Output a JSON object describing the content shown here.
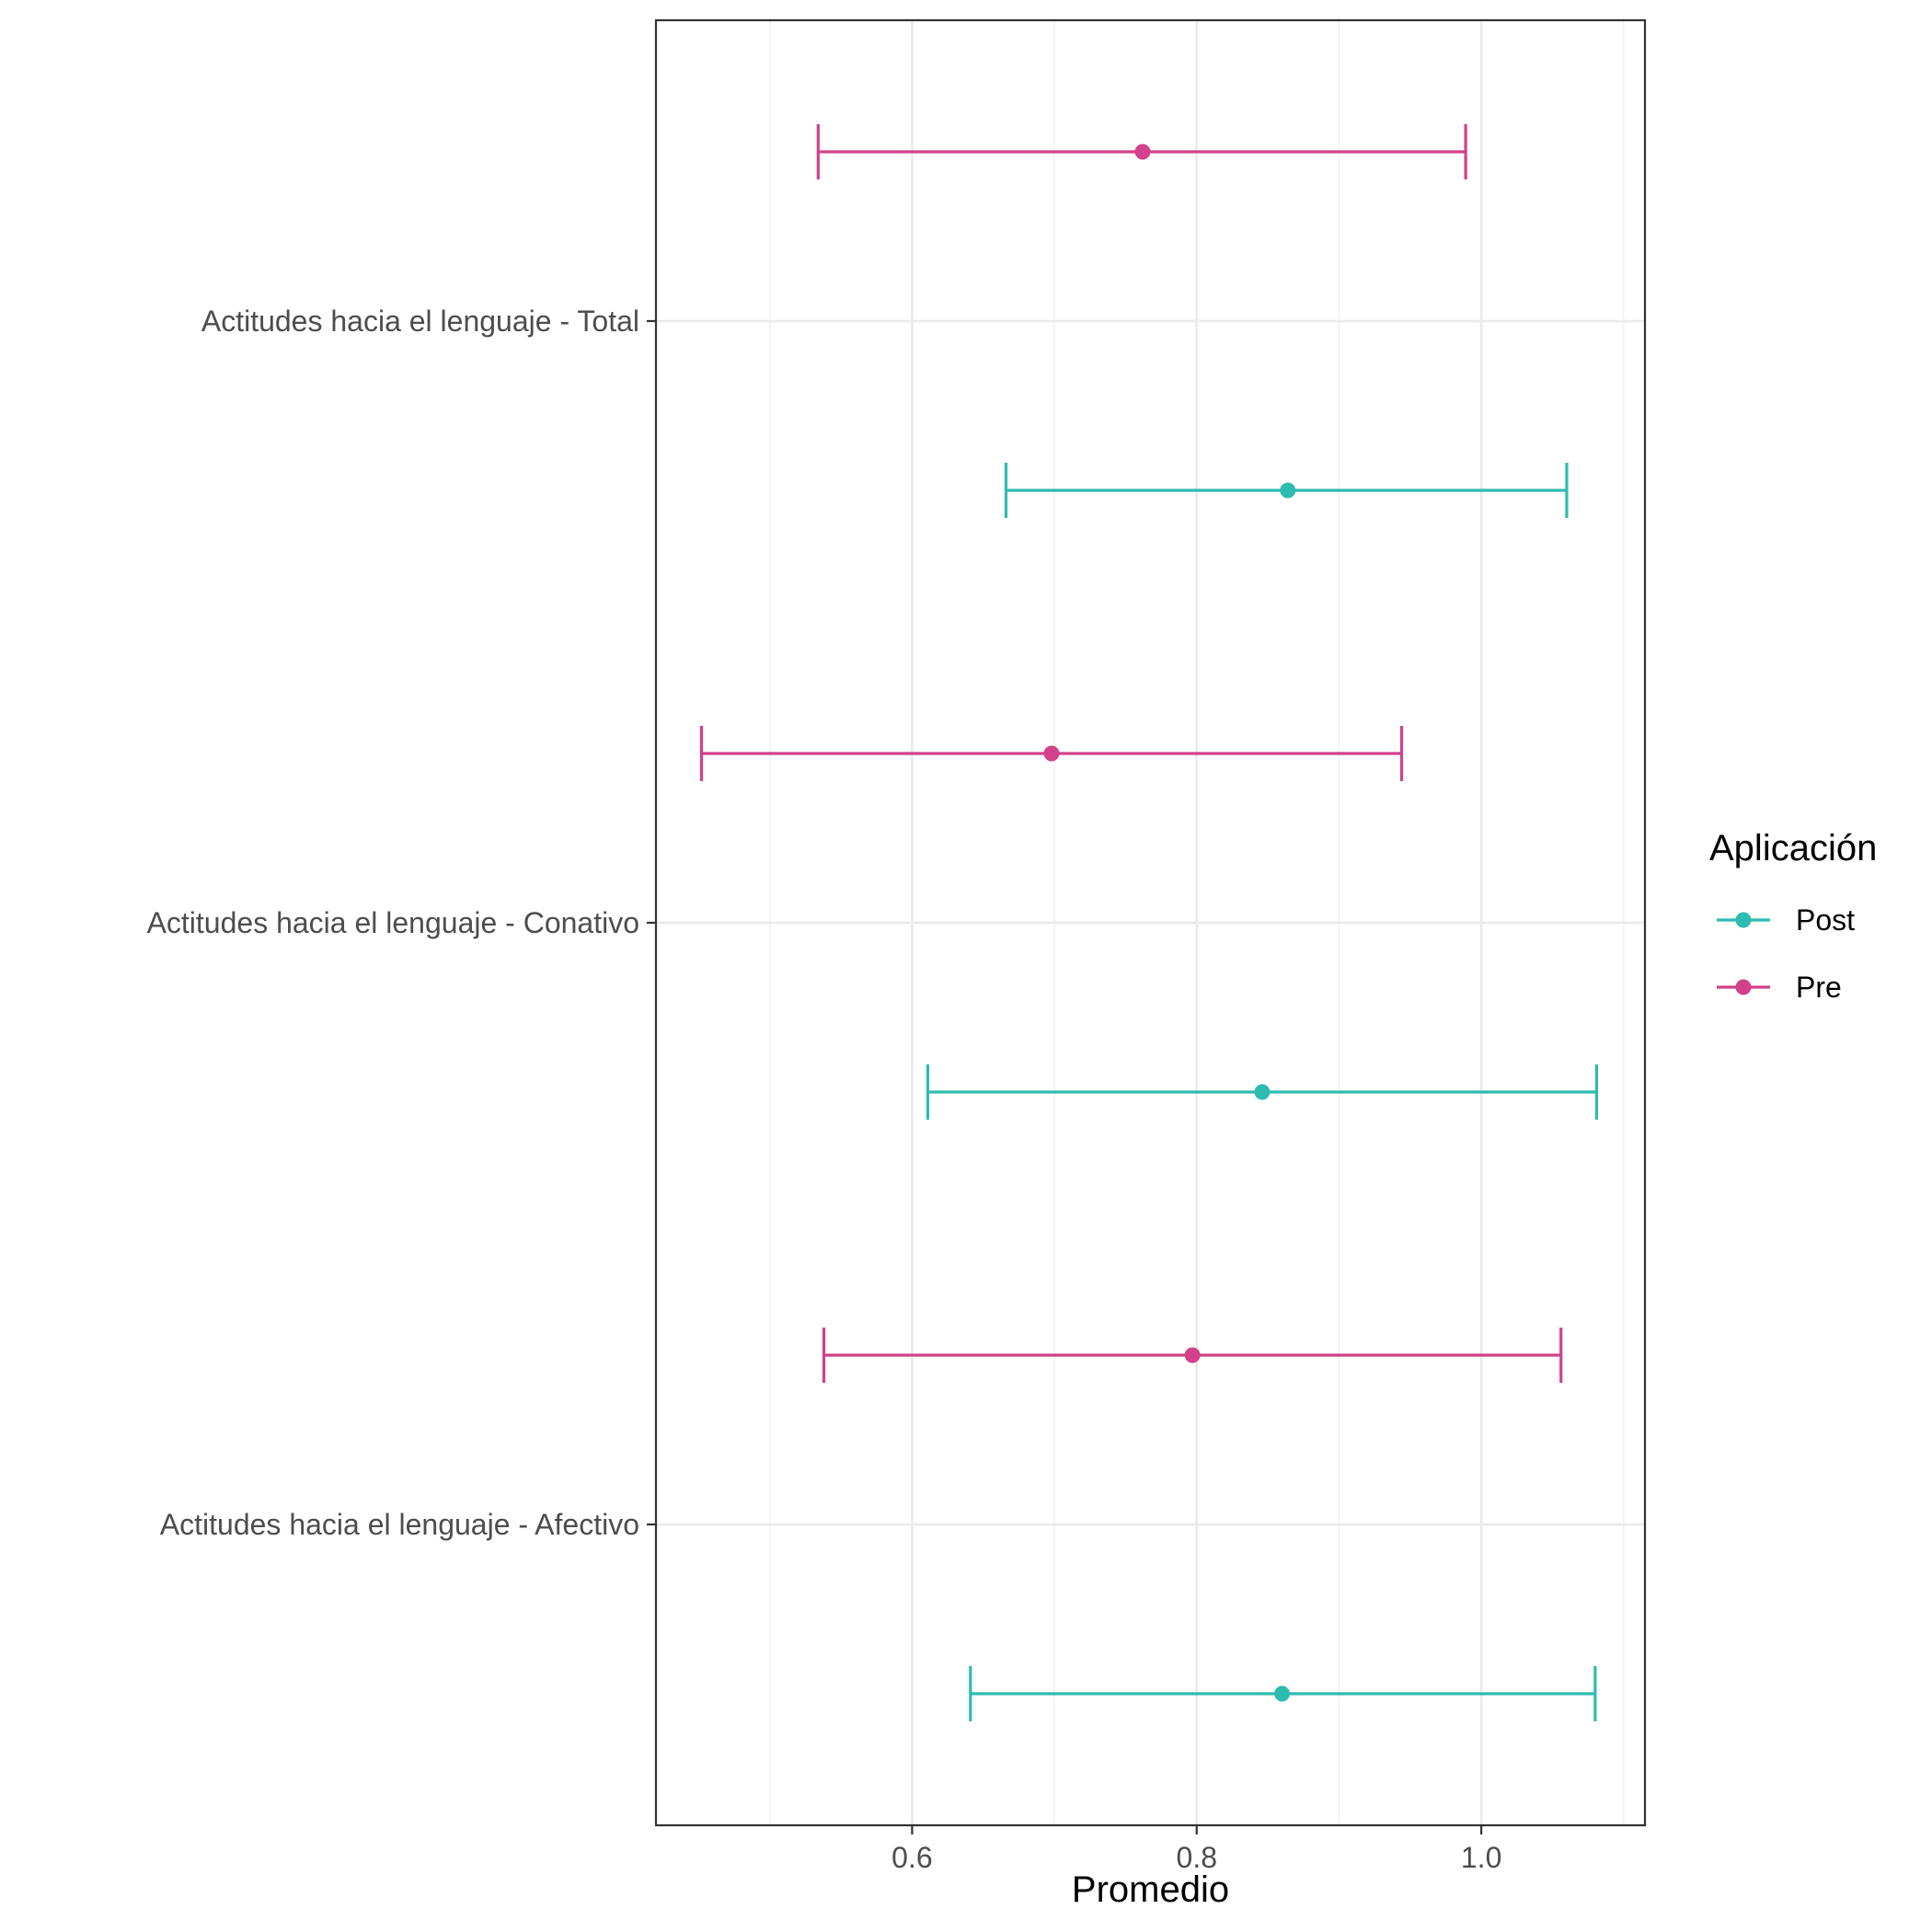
{
  "chart_data": {
    "type": "errorbar",
    "xlabel": "Promedio",
    "ylabel": "",
    "xlim": [
      0.42,
      1.115
    ],
    "xticks": [
      0.6,
      0.8,
      1.0
    ],
    "xtick_labels": [
      "0.6",
      "0.8",
      "1.0"
    ],
    "grid": true,
    "legend": {
      "title": "Aplicación",
      "placement": "right",
      "entries": [
        {
          "name": "Post",
          "color": "#2EBBB0"
        },
        {
          "name": "Pre",
          "color": "#D2418A"
        }
      ]
    },
    "categories": [
      "Actitudes hacia el lenguaje - Total",
      "Actitudes hacia el lenguaje - Conativo",
      "Actitudes hacia el lenguaje - Afectivo"
    ],
    "series": [
      {
        "name": "Pre",
        "color": "#D2418A",
        "mean": [
          0.762,
          0.698,
          0.797
        ],
        "lower": [
          0.534,
          0.452,
          0.538
        ],
        "upper": [
          0.989,
          0.944,
          1.056
        ]
      },
      {
        "name": "Post",
        "color": "#2EBBB0",
        "mean": [
          0.864,
          0.846,
          0.86
        ],
        "lower": [
          0.666,
          0.611,
          0.641
        ],
        "upper": [
          1.06,
          1.081,
          1.08
        ]
      }
    ]
  }
}
